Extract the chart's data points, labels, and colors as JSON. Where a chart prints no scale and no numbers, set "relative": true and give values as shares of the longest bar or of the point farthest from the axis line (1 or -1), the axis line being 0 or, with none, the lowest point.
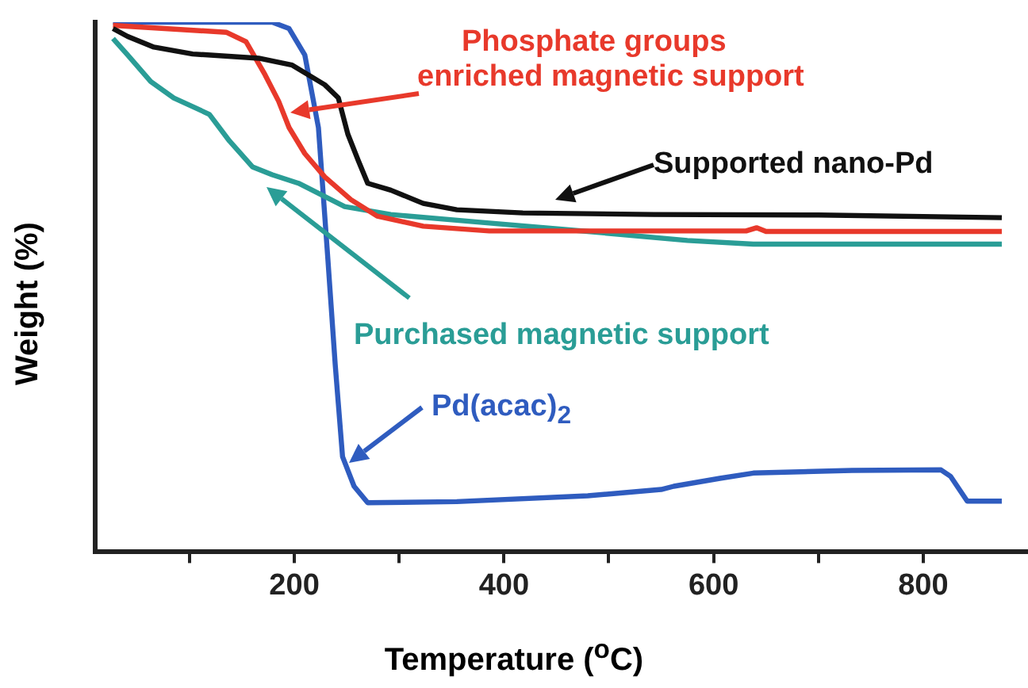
{
  "chart_data": {
    "type": "line",
    "relative": true,
    "xlabel": "Temperature ($^{o}$C)",
    "ylabel": "Weight (%)",
    "xlim": [
      10,
      900
    ],
    "xticks": [
      {
        "value": 100,
        "label": null
      },
      200,
      {
        "value": 300,
        "label": null
      },
      400,
      {
        "value": 500,
        "label": null
      },
      600,
      {
        "value": 700,
        "label": null
      },
      800
    ],
    "grid": false,
    "legend": "right",
    "marker": "none",
    "line_style": "solid",
    "series": [
      {
        "name": "Supported nano-Pd",
        "color": "#111111",
        "x": [
          27,
          41,
          66,
          103,
          166,
          198,
          229,
          242,
          251,
          261,
          270,
          292,
          323,
          355,
          418,
          543,
          700,
          875
        ],
        "values": [
          0.988,
          0.973,
          0.953,
          0.94,
          0.932,
          0.919,
          0.882,
          0.857,
          0.789,
          0.739,
          0.696,
          0.683,
          0.658,
          0.646,
          0.64,
          0.637,
          0.636,
          0.631
        ]
      },
      {
        "name": "Phosphate groups enriched magnetic support",
        "color": "#e8392b",
        "x": [
          27,
          135,
          154,
          172,
          185,
          195,
          210,
          229,
          254,
          279,
          323,
          386,
          543,
          631,
          641,
          650,
          875
        ],
        "values": [
          0.994,
          0.981,
          0.963,
          0.901,
          0.851,
          0.801,
          0.752,
          0.708,
          0.665,
          0.634,
          0.615,
          0.606,
          0.606,
          0.606,
          0.612,
          0.605,
          0.605
        ]
      },
      {
        "name": "Purchased magnetic support",
        "color": "#2a9d96",
        "x": [
          27,
          41,
          63,
          85,
          119,
          138,
          160,
          179,
          204,
          229,
          248,
          292,
          386,
          480,
          575,
          638,
          875
        ],
        "values": [
          0.969,
          0.938,
          0.888,
          0.857,
          0.826,
          0.776,
          0.727,
          0.712,
          0.696,
          0.671,
          0.652,
          0.637,
          0.621,
          0.605,
          0.588,
          0.581,
          0.581
        ]
      },
      {
        "name": "Pd(acac)$_{2}$",
        "color": "#2f5cbf",
        "x": [
          27,
          179,
          195,
          210,
          223,
          232,
          239,
          246,
          257,
          270,
          355,
          480,
          550,
          562,
          606,
          638,
          732,
          817,
          826,
          842,
          875
        ],
        "values": [
          1.0,
          1.0,
          0.988,
          0.938,
          0.801,
          0.553,
          0.354,
          0.18,
          0.124,
          0.093,
          0.095,
          0.106,
          0.118,
          0.124,
          0.139,
          0.149,
          0.154,
          0.155,
          0.143,
          0.096,
          0.096
        ]
      }
    ]
  }
}
